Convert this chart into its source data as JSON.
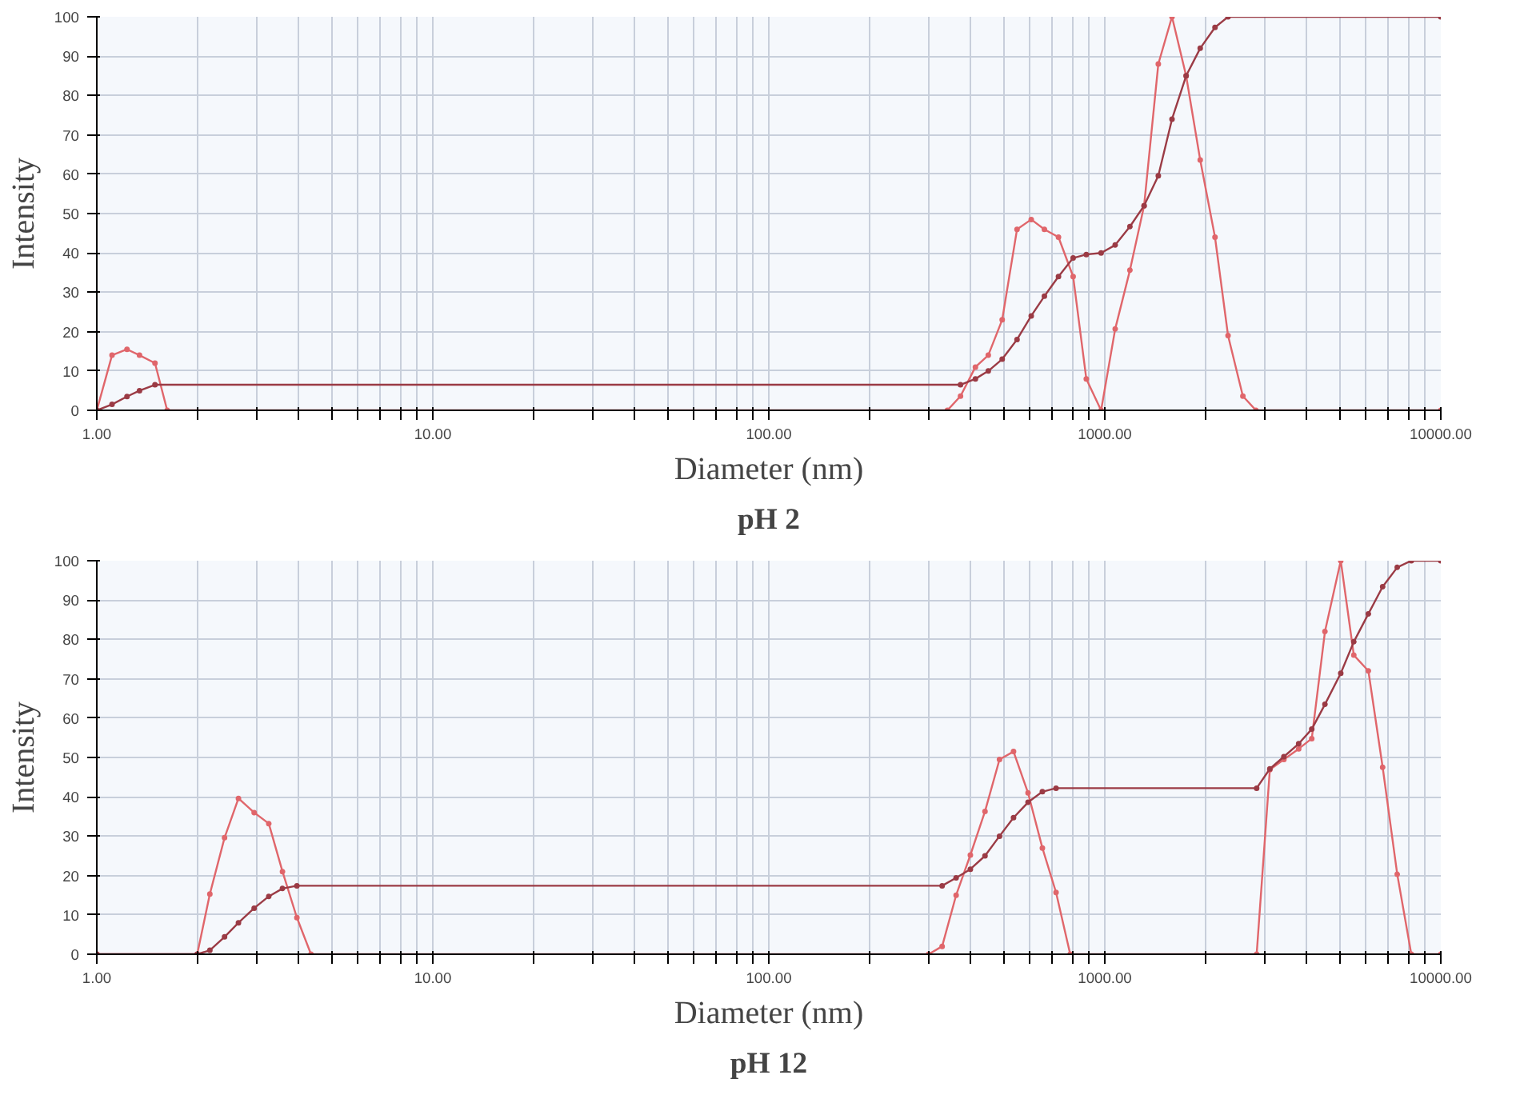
{
  "chart_data": [
    {
      "type": "line",
      "title": "pH 2",
      "xlabel": "Diameter (nm)",
      "ylabel": "Intensity",
      "log": "x",
      "grid": true,
      "marker": "circle",
      "line_style": "solid",
      "xlim": [
        1,
        10000
      ],
      "ylim": [
        0,
        100
      ],
      "xticks": [
        {
          "value": 1,
          "label": "1.00"
        },
        {
          "value": 2,
          "label": null
        },
        {
          "value": 3,
          "label": null
        },
        {
          "value": 4,
          "label": null
        },
        {
          "value": 5,
          "label": null
        },
        {
          "value": 6,
          "label": null
        },
        {
          "value": 7,
          "label": null
        },
        {
          "value": 8,
          "label": null
        },
        {
          "value": 9,
          "label": null
        },
        {
          "value": 10,
          "label": "10.00"
        },
        {
          "value": 20,
          "label": null
        },
        {
          "value": 30,
          "label": null
        },
        {
          "value": 40,
          "label": null
        },
        {
          "value": 50,
          "label": null
        },
        {
          "value": 60,
          "label": null
        },
        {
          "value": 70,
          "label": null
        },
        {
          "value": 80,
          "label": null
        },
        {
          "value": 90,
          "label": null
        },
        {
          "value": 100,
          "label": "100.00"
        },
        {
          "value": 200,
          "label": null
        },
        {
          "value": 300,
          "label": null
        },
        {
          "value": 400,
          "label": null
        },
        {
          "value": 500,
          "label": null
        },
        {
          "value": 600,
          "label": null
        },
        {
          "value": 700,
          "label": null
        },
        {
          "value": 800,
          "label": null
        },
        {
          "value": 900,
          "label": null
        },
        {
          "value": 1000,
          "label": "1000.00"
        },
        {
          "value": 2000,
          "label": null
        },
        {
          "value": 3000,
          "label": null
        },
        {
          "value": 4000,
          "label": null
        },
        {
          "value": 5000,
          "label": null
        },
        {
          "value": 6000,
          "label": null
        },
        {
          "value": 7000,
          "label": null
        },
        {
          "value": 8000,
          "label": null
        },
        {
          "value": 9000,
          "label": null
        },
        {
          "value": 10000,
          "label": "10000.00"
        }
      ],
      "yticks": [
        0,
        10,
        20,
        30,
        40,
        50,
        60,
        70,
        80,
        90,
        100
      ],
      "series": [
        {
          "color": "#e0666b",
          "x": [
            1,
            1.11,
            1.23,
            1.34,
            1.49,
            1.62,
            340,
            372,
            412,
            450,
            495,
            548,
            604,
            661,
            728,
            805,
            881,
            975,
            1074,
            1188,
            1309,
            1443,
            1585,
            1746,
            1923,
            2128,
            2327,
            2576,
            2818,
            10000
          ],
          "values": [
            0,
            14,
            15.5,
            14,
            12,
            0,
            0,
            3.6,
            11,
            14,
            23,
            46,
            48.5,
            46,
            44,
            34,
            8,
            0,
            20.7,
            35.6,
            52,
            88,
            100,
            85,
            63.6,
            44,
            19,
            3.6,
            0,
            0
          ]
        },
        {
          "color": "#9b3b45",
          "x": [
            1,
            1.11,
            1.23,
            1.34,
            1.49,
            372,
            412,
            450,
            495,
            548,
            604,
            661,
            728,
            805,
            881,
            975,
            1074,
            1188,
            1309,
            1443,
            1585,
            1746,
            1923,
            2128,
            2327,
            10000
          ],
          "values": [
            0,
            1.5,
            3.5,
            5,
            6.5,
            6.5,
            8,
            10,
            13,
            18,
            24,
            29,
            34,
            38.7,
            39.6,
            40,
            42,
            46.7,
            52,
            59.6,
            74,
            85,
            92,
            97.3,
            100,
            100
          ]
        }
      ]
    },
    {
      "type": "line",
      "title": "pH 12",
      "xlabel": "Diameter (nm)",
      "ylabel": "Intensity",
      "log": "x",
      "grid": true,
      "marker": "circle",
      "line_style": "solid",
      "xlim": [
        1,
        10000
      ],
      "ylim": [
        0,
        100
      ],
      "xticks": [
        {
          "value": 1,
          "label": "1.00"
        },
        {
          "value": 2,
          "label": null
        },
        {
          "value": 3,
          "label": null
        },
        {
          "value": 4,
          "label": null
        },
        {
          "value": 5,
          "label": null
        },
        {
          "value": 6,
          "label": null
        },
        {
          "value": 7,
          "label": null
        },
        {
          "value": 8,
          "label": null
        },
        {
          "value": 9,
          "label": null
        },
        {
          "value": 10,
          "label": "10.00"
        },
        {
          "value": 20,
          "label": null
        },
        {
          "value": 30,
          "label": null
        },
        {
          "value": 40,
          "label": null
        },
        {
          "value": 50,
          "label": null
        },
        {
          "value": 60,
          "label": null
        },
        {
          "value": 70,
          "label": null
        },
        {
          "value": 80,
          "label": null
        },
        {
          "value": 90,
          "label": null
        },
        {
          "value": 100,
          "label": "100.00"
        },
        {
          "value": 200,
          "label": null
        },
        {
          "value": 300,
          "label": null
        },
        {
          "value": 400,
          "label": null
        },
        {
          "value": 500,
          "label": null
        },
        {
          "value": 600,
          "label": null
        },
        {
          "value": 700,
          "label": null
        },
        {
          "value": 800,
          "label": null
        },
        {
          "value": 900,
          "label": null
        },
        {
          "value": 1000,
          "label": "1000.00"
        },
        {
          "value": 2000,
          "label": null
        },
        {
          "value": 3000,
          "label": null
        },
        {
          "value": 4000,
          "label": null
        },
        {
          "value": 5000,
          "label": null
        },
        {
          "value": 6000,
          "label": null
        },
        {
          "value": 7000,
          "label": null
        },
        {
          "value": 8000,
          "label": null
        },
        {
          "value": 9000,
          "label": null
        },
        {
          "value": 10000,
          "label": "10000.00"
        }
      ],
      "yticks": [
        0,
        10,
        20,
        30,
        40,
        50,
        60,
        70,
        80,
        90,
        100
      ],
      "series": [
        {
          "color": "#e0666b",
          "x": [
            1,
            1.99,
            2.17,
            2.4,
            2.64,
            2.94,
            3.25,
            3.57,
            3.94,
            4.34,
            299,
            328,
            361,
            398,
            440,
            486,
            535,
            591,
            652,
            716,
            789,
            2831,
            3099,
            3412,
            3776,
            4130,
            4521,
            5038,
            5510,
            6088,
            6714,
            7420,
            8170,
            10000
          ],
          "values": [
            0,
            0,
            15.3,
            29.6,
            39.6,
            36,
            33.2,
            21,
            9.3,
            0,
            0,
            2,
            15,
            25.2,
            36.3,
            49.5,
            51.5,
            41,
            27,
            15.7,
            0,
            0,
            46.9,
            49.5,
            52.2,
            54.8,
            82,
            100,
            76,
            72,
            47.5,
            20.3,
            0,
            0
          ]
        },
        {
          "color": "#9b3b45",
          "x": [
            1,
            1.99,
            2.17,
            2.4,
            2.64,
            2.94,
            3.25,
            3.57,
            3.94,
            328,
            361,
            398,
            440,
            486,
            535,
            591,
            652,
            716,
            2831,
            3099,
            3412,
            3776,
            4130,
            4521,
            5038,
            5510,
            6088,
            6714,
            7420,
            8170,
            10000
          ],
          "values": [
            0,
            0,
            1,
            4.4,
            8,
            11.7,
            14.7,
            16.7,
            17.4,
            17.4,
            19.4,
            21.6,
            25,
            30,
            34.7,
            38.6,
            41.3,
            42.2,
            42.2,
            47.1,
            50.2,
            53.5,
            57.2,
            63.5,
            71.4,
            79.4,
            86.5,
            93.4,
            98.3,
            100,
            100
          ]
        }
      ]
    }
  ]
}
